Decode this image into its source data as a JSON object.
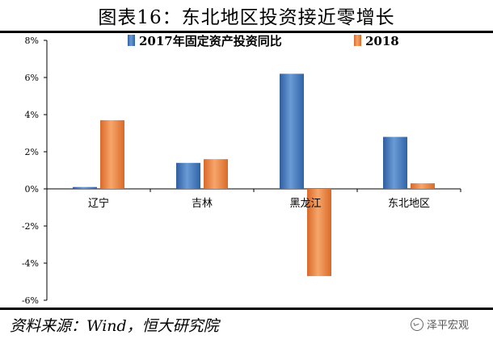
{
  "title": "图表16：东北地区投资接近零增长",
  "source": "资料来源：Wind，恒大研究院",
  "watermark": "泽平宏观",
  "colors": {
    "series1": "#3f74b8",
    "series2": "#e8813a"
  },
  "chart_data": {
    "type": "bar",
    "categories": [
      "辽宁",
      "吉林",
      "黑龙江",
      "东北地区"
    ],
    "series": [
      {
        "name": "2017年固定资产投资同比",
        "values": [
          0.1,
          1.4,
          6.2,
          2.8
        ]
      },
      {
        "name": "2018",
        "values": [
          3.7,
          1.6,
          -4.7,
          0.3
        ]
      }
    ],
    "ylim": [
      -6,
      8
    ],
    "yticks": [
      "8%",
      "6%",
      "4%",
      "2%",
      "0%",
      "-2%",
      "-4%",
      "-6%"
    ],
    "ytick_values": [
      8,
      6,
      4,
      2,
      0,
      -2,
      -4,
      -6
    ],
    "legend_position": "top",
    "grid": false
  }
}
